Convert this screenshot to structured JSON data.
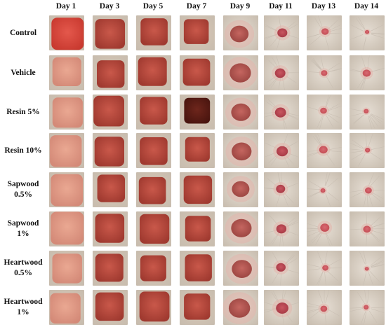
{
  "columns": [
    "Day 1",
    "Day 3",
    "Day 5",
    "Day 7",
    "Day 9",
    "Day 11",
    "Day 13",
    "Day 14"
  ],
  "rows": [
    {
      "label": "Control"
    },
    {
      "label": "Vehicle"
    },
    {
      "label": "Resin 5%"
    },
    {
      "label": "Resin 10%"
    },
    {
      "label": "Sapwood\n0.5%"
    },
    {
      "label": "Sapwood\n1%"
    },
    {
      "label": "Heartwood\n0.5%"
    },
    {
      "label": "Heartwood\n1%"
    }
  ],
  "colors": {
    "skin": "#ddd6cc",
    "wound_fresh": "#e07a6a",
    "wound_dark": "#7a2a1e",
    "wound_pink": "#d8848a"
  }
}
